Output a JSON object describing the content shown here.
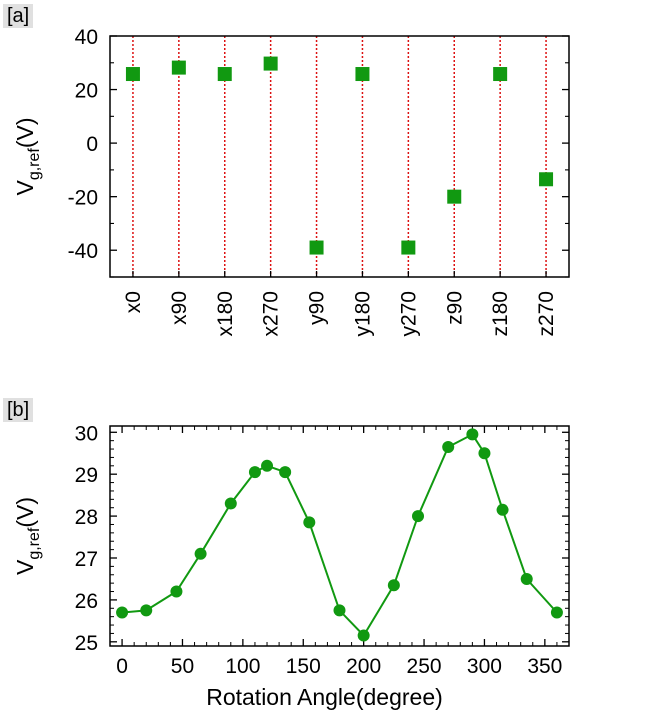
{
  "panels": {
    "a_tag": "[a]",
    "b_tag": "[b]"
  },
  "colors": {
    "marker": "#119911",
    "guide": "#dd1111",
    "axis": "#000000"
  },
  "chart_data": [
    {
      "id": "a",
      "type": "scatter",
      "marker": "square",
      "categories": [
        "x0",
        "x90",
        "x180",
        "x270",
        "y90",
        "y180",
        "y270",
        "z90",
        "z180",
        "z270"
      ],
      "values": [
        25.8,
        28.2,
        25.8,
        29.7,
        -39.0,
        25.8,
        -39.0,
        -20.0,
        25.8,
        -13.5
      ],
      "ylabel_main": "V",
      "ylabel_sub": "g,ref",
      "ylabel_unit": "(V)",
      "ylim": [
        -50,
        40
      ],
      "yticks": [
        40,
        20,
        0,
        -20,
        -40
      ],
      "ytick_labels": [
        "40",
        "20",
        "0",
        "-20",
        "-40"
      ],
      "vertical_guides": true,
      "guide_style": "red dotted"
    },
    {
      "id": "b",
      "type": "line",
      "marker": "circle",
      "x": [
        0,
        20,
        45,
        65,
        90,
        110,
        120,
        135,
        155,
        180,
        200,
        225,
        245,
        270,
        290,
        300,
        315,
        335,
        360
      ],
      "y": [
        25.7,
        25.75,
        26.2,
        27.1,
        28.3,
        29.05,
        29.2,
        29.05,
        27.85,
        25.75,
        25.15,
        26.35,
        28.0,
        29.65,
        29.95,
        29.5,
        28.15,
        26.5,
        25.7
      ],
      "xlabel": "Rotation Angle(degree)",
      "ylabel_main": "V",
      "ylabel_sub": "g,ref",
      "ylabel_unit": "(V)",
      "xlim": [
        -10,
        370
      ],
      "ylim": [
        24.9,
        30.15
      ],
      "xticks": [
        0,
        50,
        100,
        150,
        200,
        250,
        300,
        350
      ],
      "xtick_labels": [
        "0",
        "50",
        "100",
        "150",
        "200",
        "250",
        "300",
        "350"
      ],
      "yticks": [
        25,
        26,
        27,
        28,
        29,
        30
      ],
      "ytick_labels": [
        "25",
        "26",
        "27",
        "28",
        "29",
        "30"
      ]
    }
  ]
}
